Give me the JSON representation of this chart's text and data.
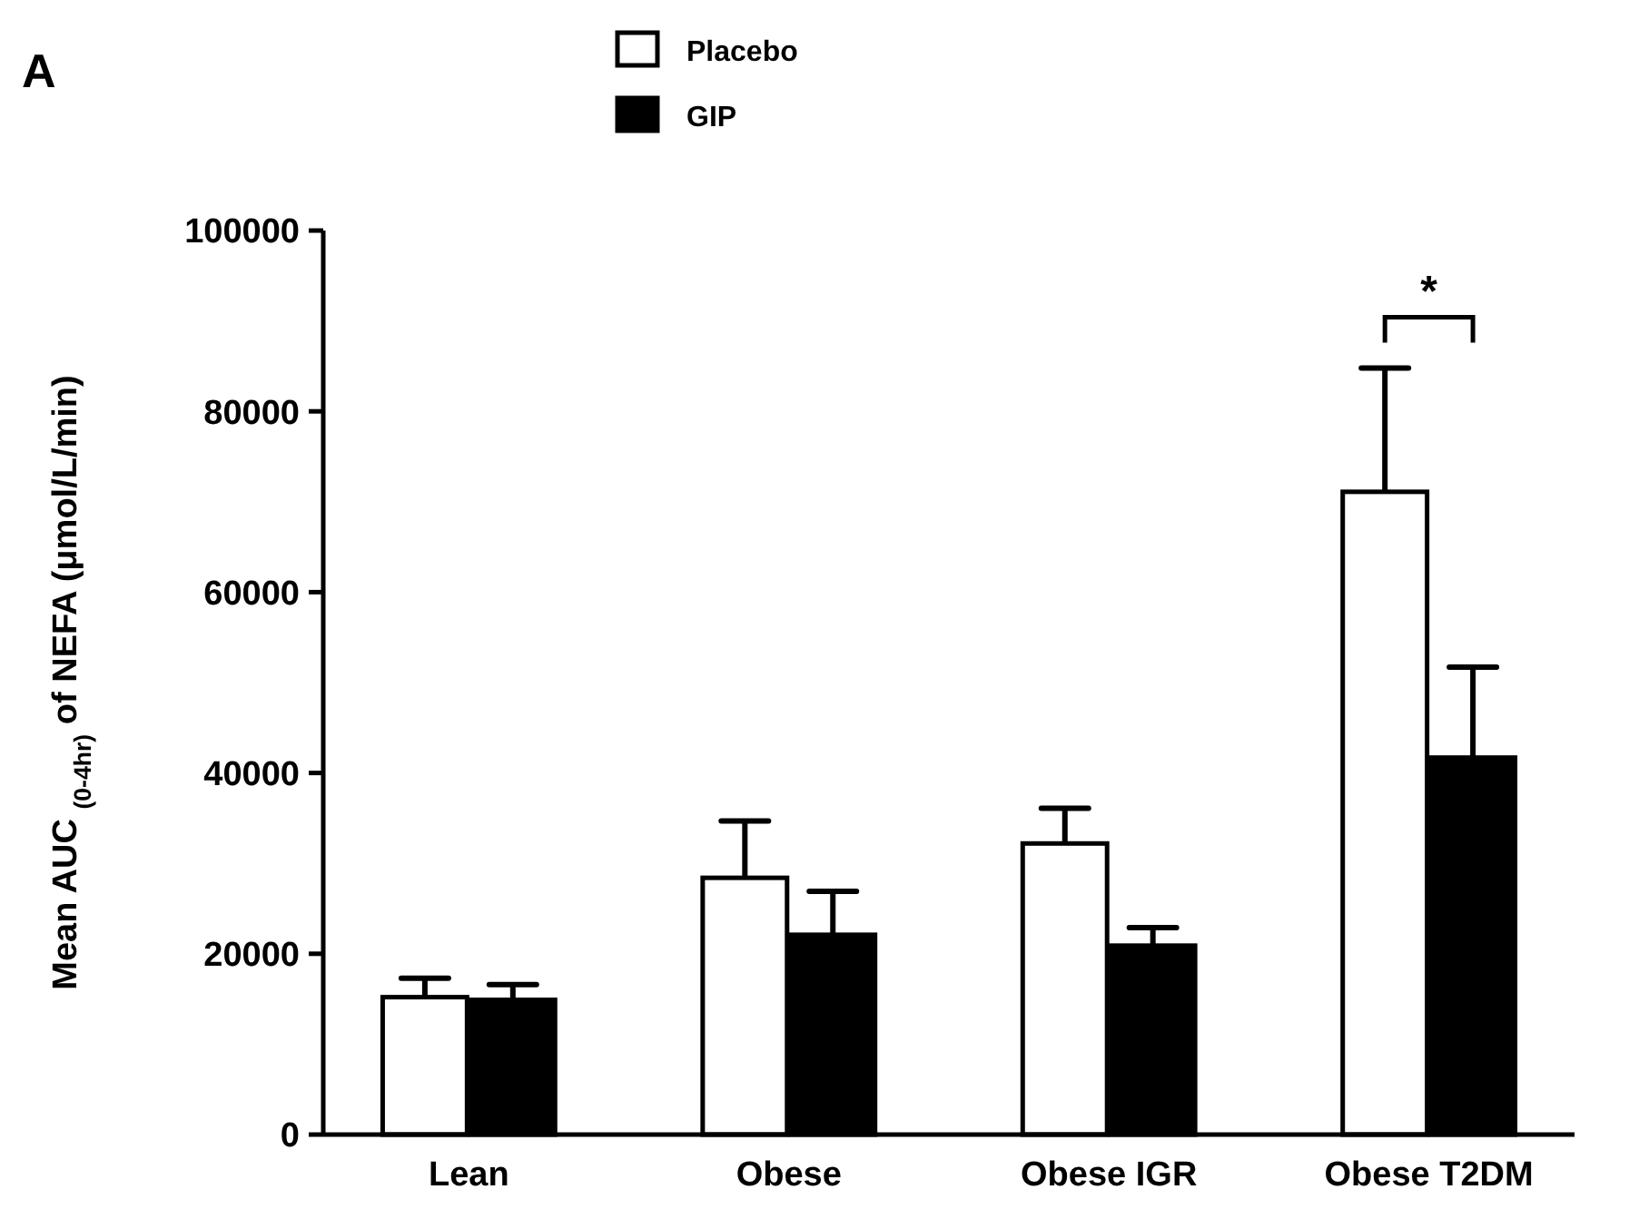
{
  "chart_data": {
    "type": "bar",
    "title": "A",
    "ylabel": "Mean AUC $_{(0-4hr)}$ of NEFA (μmol/L/min)",
    "categories": [
      "Lean",
      "Obese",
      "Obese IGR",
      "Obese T2DM"
    ],
    "series": [
      {
        "name": "Placebo",
        "color": "#ffffff",
        "values": [
          15200,
          28400,
          32200,
          71100
        ],
        "errors": [
          [
            15200,
            17300
          ],
          [
            28400,
            34700
          ],
          [
            32200,
            36100
          ],
          [
            71100,
            84800
          ]
        ]
      },
      {
        "name": "GIP",
        "color": "#000000",
        "values": [
          14900,
          22100,
          20900,
          41700
        ],
        "errors": [
          [
            14900,
            16600
          ],
          [
            22100,
            26900
          ],
          [
            20900,
            22900
          ],
          [
            41700,
            51700
          ]
        ]
      }
    ],
    "ylim": [
      0,
      100000
    ],
    "yticks": [
      0,
      20000,
      40000,
      60000,
      80000,
      100000
    ],
    "grid": false,
    "legend": "top",
    "annotations": [
      "*"
    ]
  }
}
